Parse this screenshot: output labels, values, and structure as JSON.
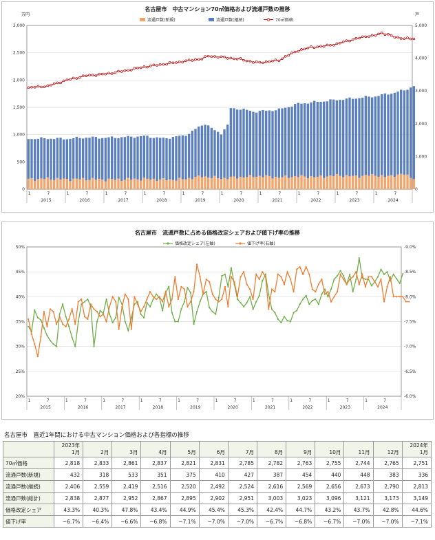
{
  "chart_data": [
    {
      "type": "bar+line",
      "title": "名古屋市　中古マンション70㎡価格および流通戸数の推移",
      "left_unit": "万円",
      "right_unit": "戸",
      "left_ticks": [
        "0",
        "500",
        "1,000",
        "1,500",
        "2,000",
        "2,500",
        "3,000"
      ],
      "right_ticks": [
        "0",
        "1,000",
        "2,000",
        "3,000",
        "4,000",
        "5,000"
      ],
      "ylim_left": [
        0,
        3000
      ],
      "ylim_right": [
        0,
        5000
      ],
      "x_start": "2015-01",
      "x_end": "2024-12",
      "month_ticks": [
        "1",
        "7"
      ],
      "years": [
        "2015",
        "2016",
        "2017",
        "2018",
        "2019",
        "2020",
        "2021",
        "2022",
        "2023",
        "2024"
      ],
      "grid": true,
      "legend_position": "top",
      "series": [
        {
          "name": "流通戸数(新規)",
          "kind": "stacked-bar",
          "axis": "right",
          "color": "#f4a46a",
          "anchors": [
            [
              0,
              300
            ],
            [
              6,
              320
            ],
            [
              12,
              300
            ],
            [
              18,
              310
            ],
            [
              24,
              290
            ],
            [
              30,
              300
            ],
            [
              36,
              310
            ],
            [
              42,
              290
            ],
            [
              48,
              300
            ],
            [
              54,
              390
            ],
            [
              60,
              330
            ],
            [
              66,
              370
            ],
            [
              72,
              400
            ],
            [
              78,
              360
            ],
            [
              84,
              390
            ],
            [
              90,
              370
            ],
            [
              96,
              420
            ],
            [
              102,
              390
            ],
            [
              106,
              420
            ],
            [
              108,
              432
            ],
            [
              111,
              375
            ],
            [
              114,
              427
            ],
            [
              117,
              454
            ],
            [
              120,
              336
            ]
          ]
        },
        {
          "name": "流通戸数(継続)",
          "kind": "stacked-bar",
          "axis": "right",
          "color": "#5b80c2",
          "anchors": [
            [
              0,
              1240
            ],
            [
              6,
              1230
            ],
            [
              12,
              1240
            ],
            [
              18,
              1270
            ],
            [
              24,
              1280
            ],
            [
              30,
              1290
            ],
            [
              36,
              1310
            ],
            [
              42,
              1260
            ],
            [
              48,
              1330
            ],
            [
              50,
              1370
            ],
            [
              54,
              1570
            ],
            [
              55,
              1620
            ],
            [
              58,
              1440
            ],
            [
              60,
              1380
            ],
            [
              62,
              1600
            ],
            [
              63,
              2120
            ],
            [
              66,
              2080
            ],
            [
              70,
              1980
            ],
            [
              72,
              1980
            ],
            [
              78,
              2070
            ],
            [
              84,
              2220
            ],
            [
              90,
              2300
            ],
            [
              96,
              2310
            ],
            [
              102,
              2390
            ],
            [
              108,
              2406
            ],
            [
              111,
              2520
            ],
            [
              114,
              2524
            ],
            [
              117,
              2569
            ],
            [
              120,
              2813
            ]
          ]
        },
        {
          "name": "70㎡価格",
          "kind": "line",
          "axis": "left",
          "color": "#c00000",
          "anchors": [
            [
              0,
              1860
            ],
            [
              6,
              1890
            ],
            [
              12,
              2000
            ],
            [
              18,
              2080
            ],
            [
              24,
              2110
            ],
            [
              30,
              2170
            ],
            [
              36,
              2240
            ],
            [
              42,
              2290
            ],
            [
              48,
              2340
            ],
            [
              54,
              2390
            ],
            [
              56,
              2440
            ],
            [
              60,
              2420
            ],
            [
              66,
              2380
            ],
            [
              70,
              2330
            ],
            [
              72,
              2320
            ],
            [
              78,
              2360
            ],
            [
              80,
              2430
            ],
            [
              84,
              2540
            ],
            [
              88,
              2600
            ],
            [
              92,
              2620
            ],
            [
              96,
              2660
            ],
            [
              100,
              2730
            ],
            [
              103,
              2770
            ],
            [
              105,
              2800
            ],
            [
              108,
              2818
            ],
            [
              110,
              2861
            ],
            [
              112,
              2835
            ],
            [
              114,
              2785
            ],
            [
              116,
              2770
            ],
            [
              118,
              2760
            ],
            [
              120,
              2751
            ]
          ]
        }
      ]
    },
    {
      "type": "line",
      "title": "名古屋市　流通戸数に占める価格改定シェアおよび値下げ率の推移",
      "left_ticks": [
        "20%",
        "25%",
        "30%",
        "35%",
        "40%",
        "45%",
        "50%"
      ],
      "right_ticks": [
        "-6.0%",
        "-6.5%",
        "-7.0%",
        "-7.5%",
        "-8.0%",
        "-8.5%",
        "-9.0%"
      ],
      "ylim_left": [
        20,
        50
      ],
      "ylim_right": [
        -9.0,
        -6.0
      ],
      "x_start": "2015-01",
      "x_end": "2024-12",
      "month_ticks": [
        "1",
        "7"
      ],
      "years": [
        "2015",
        "2016",
        "2017",
        "2018",
        "2019",
        "2020",
        "2021",
        "2022",
        "2023",
        "2024"
      ],
      "grid": true,
      "legend_position": "top",
      "series": [
        {
          "name": "価格改定シェア(左軸)",
          "axis": "left",
          "color": "#70ad47",
          "values": [
            34.0,
            33.0,
            37.3,
            35.8,
            35.3,
            33.7,
            32.2,
            31.2,
            30.5,
            30.0,
            36.5,
            38.5,
            36.0,
            34.0,
            31.8,
            30.0,
            35.0,
            38.5,
            39.0,
            39.5,
            38.0,
            30.0,
            35.0,
            37.2,
            36.6,
            39.5,
            36.5,
            34.8,
            35.8,
            39.8,
            38.5,
            35.0,
            33.2,
            35.8,
            38.5,
            39.0,
            36.5,
            35.8,
            38.8,
            38.0,
            39.5,
            40.5,
            39.8,
            37.2,
            40.8,
            42.0,
            36.8,
            35.0,
            35.0,
            37.5,
            39.0,
            41.8,
            40.8,
            34.5,
            37.0,
            39.0,
            40.5,
            41.0,
            37.8,
            37.0,
            36.5,
            39.8,
            44.2,
            44.5,
            42.0,
            45.8,
            42.5,
            39.5,
            38.8,
            38.0,
            38.8,
            40.0,
            37.5,
            39.0,
            40.2,
            43.2,
            44.5,
            40.5,
            37.5,
            36.8,
            35.5,
            34.8,
            36.0,
            35.2,
            35.0,
            36.8,
            37.2,
            38.5,
            39.5,
            40.2,
            38.5,
            39.2,
            39.5,
            38.5,
            40.5,
            41.5,
            40.0,
            41.5,
            43.5,
            44.2,
            45.2,
            44.2,
            42.5,
            44.5,
            41.0,
            43.5,
            47.8,
            43.8,
            43.5,
            43.5,
            42.2,
            43.0,
            44.0,
            45.5,
            44.5,
            45.0,
            43.2,
            44.5,
            43.6,
            42.7,
            44.6
          ]
        },
        {
          "name": "値下げ率(右軸)",
          "axis": "right",
          "color": "#ed7d31",
          "values": [
            -7.45,
            -7.75,
            -7.95,
            -8.2,
            -7.8,
            -7.3,
            -7.6,
            -7.25,
            -7.3,
            -7.55,
            -7.4,
            -7.55,
            -7.6,
            -7.45,
            -7.25,
            -7.55,
            -7.1,
            -7.05,
            -7.4,
            -7.45,
            -7.15,
            -7.25,
            -7.3,
            -7.4,
            -7.35,
            -7.5,
            -7.2,
            -7.0,
            -7.1,
            -7.65,
            -7.2,
            -6.95,
            -7.05,
            -7.65,
            -7.0,
            -7.15,
            -7.3,
            -7.2,
            -7.05,
            -6.9,
            -7.0,
            -7.05,
            -7.0,
            -7.1,
            -6.9,
            -7.2,
            -7.05,
            -6.6,
            -7.05,
            -6.8,
            -6.85,
            -7.2,
            -7.1,
            -6.9,
            -6.35,
            -6.6,
            -6.95,
            -6.65,
            -6.7,
            -6.95,
            -7.05,
            -7.1,
            -7.05,
            -6.8,
            -7.2,
            -6.6,
            -6.7,
            -7.0,
            -6.6,
            -6.5,
            -6.75,
            -6.85,
            -7.05,
            -6.55,
            -6.65,
            -6.5,
            -6.6,
            -7.25,
            -6.85,
            -6.9,
            -6.55,
            -6.6,
            -6.75,
            -6.5,
            -6.65,
            -6.9,
            -6.45,
            -6.4,
            -6.55,
            -6.4,
            -6.55,
            -6.85,
            -6.9,
            -6.75,
            -6.65,
            -6.95,
            -6.9,
            -7.1,
            -7.0,
            -6.9,
            -6.55,
            -6.65,
            -6.75,
            -6.65,
            -6.6,
            -6.5,
            -6.75,
            -6.55,
            -6.8,
            -6.6,
            -6.6,
            -6.7,
            -6.8,
            -6.65,
            -7.1,
            -6.8,
            -6.6,
            -7.0,
            -7.0,
            -7.0,
            -7.0,
            -7.1,
            -7.1
          ]
        }
      ]
    }
  ],
  "table": {
    "caption": "名古屋市　直近1年間における中古マンション価格および各指標の推移",
    "headers": [
      [
        "2023年",
        "1月"
      ],
      [
        "",
        "2月"
      ],
      [
        "",
        "3月"
      ],
      [
        "",
        "4月"
      ],
      [
        "",
        "5月"
      ],
      [
        "",
        "6月"
      ],
      [
        "",
        "7月"
      ],
      [
        "",
        "8月"
      ],
      [
        "",
        "9月"
      ],
      [
        "",
        "10月"
      ],
      [
        "",
        "11月"
      ],
      [
        "",
        "12月"
      ],
      [
        "2024年",
        "1月"
      ]
    ],
    "rows": [
      {
        "label": "70㎡価格",
        "values": [
          "2,818",
          "2,833",
          "2,861",
          "2,837",
          "2,821",
          "2,831",
          "2,785",
          "2,782",
          "2,763",
          "2,755",
          "2,744",
          "2,765",
          "2,751"
        ]
      },
      {
        "label": "流通戸数(新規)",
        "values": [
          "432",
          "318",
          "533",
          "351",
          "375",
          "410",
          "427",
          "387",
          "454",
          "440",
          "448",
          "383",
          "336"
        ]
      },
      {
        "label": "流通戸数(継続)",
        "values": [
          "2,406",
          "2,559",
          "2,419",
          "2,516",
          "2,520",
          "2,492",
          "2,524",
          "2,616",
          "2,569",
          "2,656",
          "2,673",
          "2,790",
          "2,813"
        ]
      },
      {
        "label": "流通戸数(総計)",
        "values": [
          "2,838",
          "2,877",
          "2,952",
          "2,867",
          "2,895",
          "2,902",
          "2,951",
          "3,003",
          "3,023",
          "3,096",
          "3,121",
          "3,173",
          "3,149"
        ]
      },
      {
        "label": "価格改定シェア",
        "values": [
          "43.3%",
          "40.3%",
          "47.8%",
          "43.4%",
          "44.9%",
          "45.4%",
          "45.3%",
          "42.4%",
          "44.7%",
          "43.2%",
          "43.7%",
          "42.8%",
          "44.6%"
        ]
      },
      {
        "label": "値下げ率",
        "values": [
          "−6.7%",
          "−6.4%",
          "−6.6%",
          "−6.8%",
          "−7.1%",
          "−7.0%",
          "−7.0%",
          "−6.7%",
          "−6.8%",
          "−6.7%",
          "−7.0%",
          "−7.0%",
          "−7.1%"
        ]
      }
    ]
  }
}
